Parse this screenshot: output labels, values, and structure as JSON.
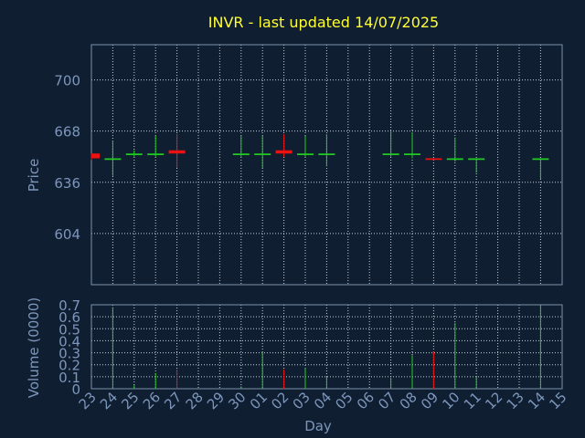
{
  "chart_data": {
    "type": "candlestick",
    "title": "INVR - last updated 14/07/2025",
    "price_panel": {
      "ylabel": "Price",
      "ylim": [
        572,
        722
      ],
      "yticks": [
        604,
        636,
        668,
        700
      ]
    },
    "volume_panel": {
      "ylabel": "Volume (0000)",
      "ylim": [
        0,
        0.7
      ],
      "yticks": [
        0,
        0.1,
        0.2,
        0.3,
        0.4,
        0.5,
        0.6,
        0.7
      ]
    },
    "xlabel": "Day",
    "days": [
      "23",
      "24",
      "25",
      "26",
      "27",
      "28",
      "29",
      "30",
      "01",
      "02",
      "03",
      "04",
      "05",
      "06",
      "07",
      "08",
      "09",
      "10",
      "11",
      "12",
      "13",
      "14",
      "15"
    ],
    "candles": [
      {
        "day": "23",
        "open": 654,
        "high": 654,
        "low": 650,
        "close": 651,
        "volume": 0,
        "dir": "down"
      },
      {
        "day": "24",
        "open": 650,
        "high": 662,
        "low": 640,
        "close": 651,
        "volume": 0.68,
        "dir": "up"
      },
      {
        "day": "25",
        "open": 653,
        "high": 656,
        "low": 652,
        "close": 654,
        "volume": 0.03,
        "dir": "up"
      },
      {
        "day": "26",
        "open": 653,
        "high": 665,
        "low": 652,
        "close": 654,
        "volume": 0.13,
        "dir": "up"
      },
      {
        "day": "27",
        "open": 656,
        "high": 666,
        "low": 645,
        "close": 654,
        "volume": 0.16,
        "dir": "down"
      },
      {
        "day": "30",
        "open": 653,
        "high": 665,
        "low": 652,
        "close": 654,
        "volume": 0.02,
        "dir": "up"
      },
      {
        "day": "01",
        "open": 653,
        "high": 665,
        "low": 645,
        "close": 654,
        "volume": 0.31,
        "dir": "up"
      },
      {
        "day": "02",
        "open": 656,
        "high": 666,
        "low": 652,
        "close": 654,
        "volume": 0.16,
        "dir": "down"
      },
      {
        "day": "03",
        "open": 653,
        "high": 665,
        "low": 652,
        "close": 654,
        "volume": 0.17,
        "dir": "up"
      },
      {
        "day": "04",
        "open": 653,
        "high": 666,
        "low": 646,
        "close": 654,
        "volume": 0.1,
        "dir": "up"
      },
      {
        "day": "07",
        "open": 653,
        "high": 668,
        "low": 652,
        "close": 654,
        "volume": 0.09,
        "dir": "up"
      },
      {
        "day": "08",
        "open": 653,
        "high": 667,
        "low": 651,
        "close": 654,
        "volume": 0.28,
        "dir": "up"
      },
      {
        "day": "09",
        "open": 651,
        "high": 651,
        "low": 650,
        "close": 650,
        "volume": 0.31,
        "dir": "down"
      },
      {
        "day": "10",
        "open": 650,
        "high": 664,
        "low": 649,
        "close": 651,
        "volume": 0.55,
        "dir": "up"
      },
      {
        "day": "11",
        "open": 650,
        "high": 651,
        "low": 642,
        "close": 651,
        "volume": 0.1,
        "dir": "up"
      },
      {
        "day": "14",
        "open": 650,
        "high": 651,
        "low": 638,
        "close": 651,
        "volume": 0.7,
        "dir": "up"
      }
    ],
    "colors": {
      "background": "#0f1e30",
      "frame": "#7d91ad",
      "grid": "#c8d0dc",
      "axis_text": "#7d96bc",
      "title": "#ffff33",
      "up": "#22cc22",
      "down": "#ee1111"
    },
    "grid": true
  }
}
